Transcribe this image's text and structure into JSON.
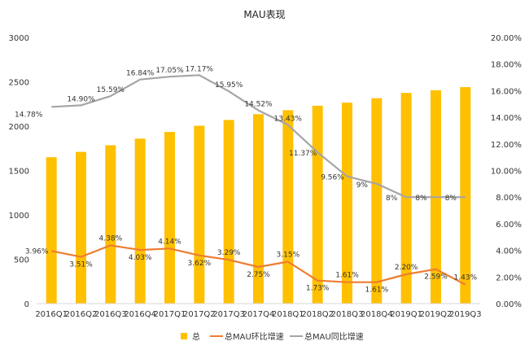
{
  "chart_data": {
    "type": "bar",
    "title": "MAU表现",
    "categories": [
      "2016Q1",
      "2016Q2",
      "2016Q3",
      "2016Q4",
      "2017Q1",
      "2017Q2",
      "2017Q3",
      "2017Q4",
      "2018Q1",
      "2018Q2",
      "2018Q3",
      "2018Q4",
      "2019Q1",
      "2019Q2",
      "2019Q3"
    ],
    "bar_series": {
      "name": "总",
      "color": "#FFC000",
      "values": [
        1650,
        1710,
        1785,
        1860,
        1935,
        2005,
        2070,
        2135,
        2180,
        2230,
        2265,
        2315,
        2375,
        2405,
        2440
      ]
    },
    "line_series": [
      {
        "name": "总MAU环比增速",
        "color": "#ED7D31",
        "axis": "right",
        "values": [
          3.96,
          3.51,
          4.38,
          4.03,
          4.14,
          3.62,
          3.29,
          2.75,
          3.15,
          1.73,
          1.61,
          1.61,
          2.2,
          2.59,
          1.43
        ],
        "labels": [
          "3.96%",
          "3.51%",
          "4.38%",
          "4.03%",
          "4.14%",
          "3.62%",
          "3.29%",
          "2.75%",
          "3.15%",
          "1.73%",
          "1.61%",
          "1.61%",
          "2.20%",
          "2.59%",
          "1.43%"
        ]
      },
      {
        "name": "总MAU同比增速",
        "color": "#A5A5A5",
        "axis": "right",
        "values": [
          14.78,
          14.9,
          15.59,
          16.84,
          17.05,
          17.17,
          15.95,
          14.52,
          13.43,
          11.37,
          9.56,
          9.0,
          8.0,
          8.0,
          8.0
        ],
        "labels": [
          "14.78%",
          "14.90%",
          "15.59%",
          "16.84%",
          "17.05%",
          "17.17%",
          "15.95%",
          "14.52%",
          "13.43%",
          "11.37%",
          "9.56%",
          "9%",
          "8%",
          "8%",
          "8%"
        ]
      }
    ],
    "y_left": {
      "min": 0,
      "max": 3000,
      "ticks": [
        0,
        500,
        1000,
        1500,
        2000,
        2500,
        3000
      ],
      "tick_labels": [
        "0",
        "500",
        "1000",
        "1500",
        "2000",
        "2500",
        "3000"
      ]
    },
    "y_right": {
      "min": 0,
      "max": 20,
      "ticks": [
        0,
        2,
        4,
        6,
        8,
        10,
        12,
        14,
        16,
        18,
        20
      ],
      "tick_labels": [
        "0.00%",
        "2.00%",
        "4.00%",
        "6.00%",
        "8.00%",
        "10.00%",
        "12.00%",
        "14.00%",
        "16.00%",
        "18.00%",
        "20.00%"
      ]
    },
    "grid": false,
    "legend_position": "bottom",
    "legend": [
      {
        "label": "总",
        "kind": "bar",
        "color": "#FFC000"
      },
      {
        "label": "总MAU环比增速",
        "kind": "line",
        "color": "#ED7D31"
      },
      {
        "label": "总MAU同比增速",
        "kind": "line",
        "color": "#A5A5A5"
      }
    ]
  }
}
